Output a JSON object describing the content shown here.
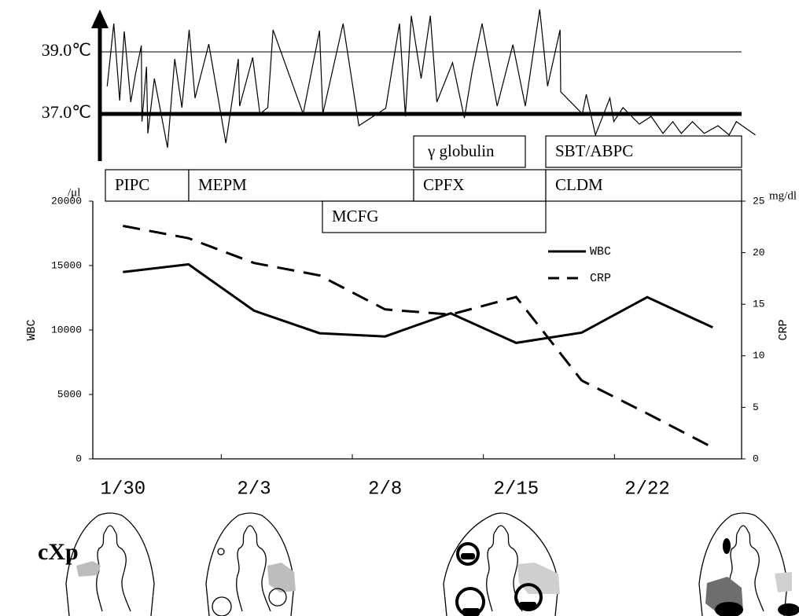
{
  "chart_data": [
    {
      "type": "line",
      "color": "#000000",
      "x": [
        -0.24,
        -0.14,
        -0.05,
        0.02,
        0.12,
        0.19,
        0.28,
        0.29,
        0.36,
        0.38,
        0.48,
        0.68,
        0.79,
        0.9,
        1.01,
        1.1,
        1.31,
        1.57,
        1.76,
        1.78,
        1.98,
        2.09,
        2.21,
        2.29,
        2.75,
        3.0,
        3.05,
        3.36,
        3.6,
        4.01,
        4.22,
        4.31,
        4.4,
        4.55,
        4.69,
        4.79,
        5.03,
        5.21,
        5.33,
        5.48,
        5.71,
        5.95,
        6.14,
        6.36,
        6.48,
        6.67,
        6.68,
        7.01,
        7.07,
        7.21,
        7.43,
        7.49,
        7.63,
        7.88,
        8.06,
        8.24,
        8.39,
        8.52,
        8.69,
        8.87,
        9.08,
        9.25,
        9.36,
        9.65
      ],
      "values": [
        37.89,
        39.91,
        37.43,
        39.66,
        37.38,
        38.27,
        39.2,
        36.75,
        38.52,
        36.37,
        38.14,
        35.91,
        38.77,
        37.2,
        39.71,
        37.51,
        39.25,
        36.06,
        38.77,
        37.25,
        38.82,
        37.0,
        37.2,
        39.71,
        37.0,
        39.68,
        37.0,
        39.91,
        36.62,
        37.18,
        39.91,
        36.92,
        40.16,
        38.14,
        40.16,
        37.38,
        38.65,
        36.87,
        38.39,
        39.91,
        37.25,
        39.23,
        37.25,
        40.37,
        37.89,
        39.71,
        37.71,
        37.0,
        37.63,
        36.32,
        37.51,
        36.75,
        37.2,
        36.67,
        36.92,
        36.37,
        36.75,
        36.37,
        36.75,
        36.37,
        36.62,
        36.32,
        36.75,
        36.32
      ],
      "xlim": [
        -0.46,
        9.44
      ],
      "ylim": [
        35.5,
        40.3
      ],
      "yticks": [
        {
          "value": 37,
          "label": "37.0℃"
        },
        {
          "value": 39,
          "label": "39.0℃"
        }
      ]
    },
    {
      "type": "line",
      "categories": [
        "1/30",
        null,
        "2/3",
        null,
        "2/8",
        null,
        "2/15",
        null,
        "2/22",
        null
      ],
      "series": [
        {
          "name": "WBC",
          "color": "#000000",
          "style": "solid",
          "values": [
            14500,
            15100,
            11500,
            9750,
            9500,
            11300,
            9000,
            9800,
            12550,
            10200
          ]
        },
        {
          "name": "CRP",
          "color": "#000000",
          "style": "dashed",
          "axis": "y2",
          "values": [
            22.6,
            21.4,
            19.0,
            17.8,
            14.5,
            14.0,
            15.7,
            7.6,
            4.4,
            1.1
          ]
        }
      ],
      "xlim": [
        -0.46,
        9.44
      ],
      "ylim": [
        0,
        20000
      ],
      "yticks": [
        0,
        5000,
        10000,
        15000,
        20000
      ],
      "y2lim": [
        0,
        25
      ],
      "y2ticks": [
        0,
        5,
        10,
        15,
        20,
        25
      ],
      "ylabel": "WBC",
      "y2label": "CRP",
      "yunit": "/μl",
      "y2unit": "mg/dl",
      "legend": "top-right"
    }
  ],
  "drugs": [
    "PIPC",
    "MEPM",
    "MCFG",
    "γ globulin",
    "CPFX",
    "SBT/ABPC",
    "CLDM"
  ],
  "xray_label": "cXp"
}
